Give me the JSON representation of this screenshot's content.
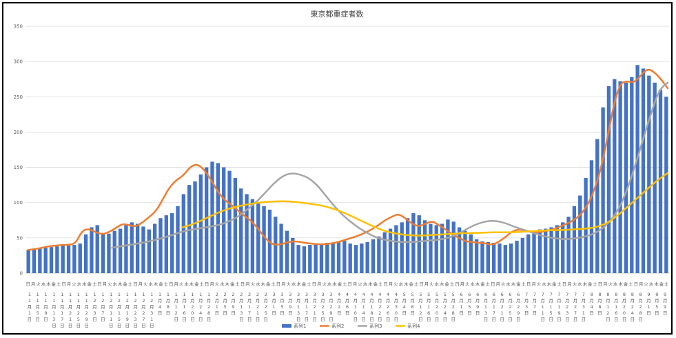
{
  "chart_data": {
    "type": "bar",
    "title": "東京都重症者数",
    "xlabel": "",
    "ylabel": "",
    "ylim": [
      0,
      350
    ],
    "yticks": [
      0,
      50,
      100,
      150,
      200,
      250,
      300,
      350
    ],
    "grid": true,
    "legend_position": "bottom",
    "x_weekday_pattern": [
      "日",
      "月",
      "火",
      "水",
      "木",
      "金",
      "土"
    ],
    "x_date_labels": [
      "11月1日",
      "11月5日",
      "11月9日",
      "11月13日",
      "11月17日",
      "11月21日",
      "11月25日",
      "11月29日",
      "12月3日",
      "12月7日",
      "12月11日",
      "12月15日",
      "12月19日",
      "12月23日",
      "12月27日",
      "12月31日",
      "1月4日",
      "1月8日",
      "1月12日",
      "1月16日",
      "1月20日",
      "1月24日",
      "1月28日",
      "2月1日",
      "2月5日",
      "2月9日",
      "2月13日",
      "2月17日",
      "2月21日",
      "2月25日",
      "3月1日",
      "3月5日",
      "3月9日",
      "3月13日",
      "3月17日",
      "3月21日",
      "3月25日",
      "3月29日",
      "4月2日",
      "4月6日",
      "4月10日",
      "4月14日",
      "4月18日",
      "4月22日",
      "4月26日",
      "4月30日",
      "5月4日",
      "5月8日",
      "5月12日",
      "5月16日",
      "5月20日",
      "5月24日",
      "5月28日",
      "6月1日",
      "6月5日",
      "6月9日",
      "6月13日",
      "6月17日",
      "6月21日",
      "6月25日",
      "6月29日",
      "7月3日",
      "7月7日",
      "7月11日",
      "7月15日",
      "7月19日",
      "7月23日",
      "7月27日",
      "7月31日",
      "8月4日",
      "8月8日",
      "8月12日",
      "8月16日",
      "8月20日",
      "8月24日",
      "8月28日",
      "9月1日",
      "9月5日",
      "9月9日"
    ],
    "series": [
      {
        "name": "系列1",
        "kind": "bar",
        "color": "#4472C4",
        "values": [
          33,
          34,
          35,
          36,
          37,
          38,
          39,
          39,
          40,
          42,
          55,
          65,
          68,
          57,
          56,
          60,
          63,
          68,
          72,
          70,
          66,
          62,
          70,
          78,
          82,
          85,
          95,
          112,
          125,
          130,
          140,
          150,
          158,
          156,
          150,
          145,
          135,
          120,
          112,
          105,
          100,
          95,
          90,
          80,
          70,
          60,
          50,
          40,
          38,
          40,
          42,
          42,
          43,
          43,
          45,
          46,
          42,
          40,
          42,
          44,
          48,
          52,
          58,
          63,
          68,
          72,
          78,
          85,
          82,
          75,
          70,
          68,
          70,
          76,
          73,
          65,
          60,
          55,
          48,
          45,
          44,
          43,
          42,
          40,
          42,
          46,
          50,
          55,
          58,
          62,
          63,
          65,
          68,
          72,
          80,
          95,
          110,
          135,
          160,
          190,
          235,
          265,
          275,
          272,
          270,
          278,
          295,
          290,
          280,
          270,
          260,
          250
        ]
      },
      {
        "name": "系列2",
        "kind": "line",
        "color": "#ED7D31",
        "width": 2.5,
        "values": [
          33,
          34,
          36,
          38,
          39,
          40,
          40,
          42,
          60,
          63,
          58,
          55,
          58,
          64,
          70,
          68,
          66,
          72,
          80,
          88,
          105,
          122,
          132,
          138,
          150,
          155,
          148,
          135,
          118,
          105,
          98,
          90,
          82,
          75,
          65,
          52,
          42,
          40,
          42,
          45,
          45,
          43,
          42,
          41,
          41,
          42,
          44,
          47,
          50,
          53,
          57,
          62,
          68,
          75,
          80,
          84,
          78,
          70,
          66,
          70,
          74,
          68,
          62,
          55,
          50,
          45,
          44,
          43,
          42,
          40,
          45,
          52,
          60,
          62,
          60,
          58,
          58,
          60,
          62,
          66,
          70,
          75,
          82,
          95,
          115,
          145,
          190,
          240,
          270,
          272,
          270,
          280,
          290,
          285,
          275,
          262
        ]
      },
      {
        "name": "系列3",
        "kind": "line",
        "color": "#A5A5A5",
        "width": 2.5,
        "values": [
          36,
          38,
          40,
          42,
          44,
          47,
          50,
          54,
          58,
          61,
          63,
          65,
          67,
          70,
          75,
          82,
          92,
          102,
          115,
          128,
          138,
          142,
          140,
          135,
          125,
          110,
          95,
          82,
          72,
          63,
          56,
          50,
          47,
          45,
          44,
          44,
          45,
          46,
          47,
          49,
          53,
          59,
          66,
          71,
          74,
          74,
          71,
          66,
          62,
          58,
          54,
          51,
          49,
          48,
          49,
          51,
          54,
          60,
          70,
          85,
          110,
          145,
          185,
          225,
          260,
          270
        ]
      },
      {
        "name": "系列4",
        "kind": "line",
        "color": "#FFC000",
        "width": 2.5,
        "values": [
          65,
          70,
          78,
          86,
          92,
          96,
          99,
          101,
          102,
          102,
          100,
          98,
          95,
          90,
          83,
          75,
          67,
          60,
          56,
          54,
          53,
          54,
          55,
          56,
          57,
          57,
          58,
          58,
          58,
          59,
          60,
          61,
          61,
          62,
          63,
          65,
          72,
          85,
          100,
          115,
          130,
          142
        ]
      }
    ]
  }
}
